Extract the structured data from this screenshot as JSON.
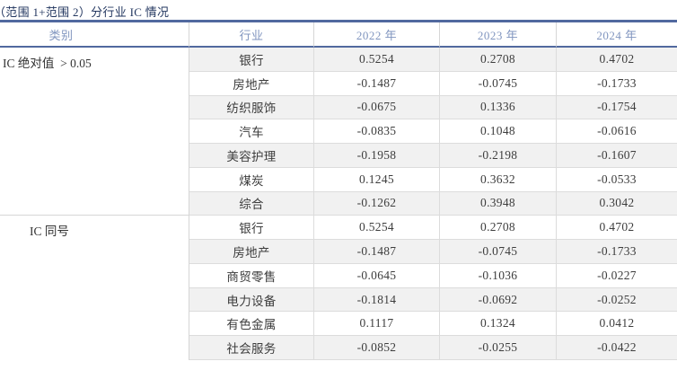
{
  "title": "（范围 1+范围 2）分行业 IC 情况",
  "table": {
    "headers": [
      "类别",
      "行业",
      "2022 年",
      "2023 年",
      "2024 年"
    ],
    "sections": [
      {
        "category": "IC 绝对值  > 0.05",
        "rows": [
          [
            "银行",
            "0.5254",
            "0.2708",
            "0.4702"
          ],
          [
            "房地产",
            "-0.1487",
            "-0.0745",
            "-0.1733"
          ],
          [
            "纺织服饰",
            "-0.0675",
            "0.1336",
            "-0.1754"
          ],
          [
            "汽车",
            "-0.0835",
            "0.1048",
            "-0.0616"
          ],
          [
            "美容护理",
            "-0.1958",
            "-0.2198",
            "-0.1607"
          ],
          [
            "煤炭",
            "0.1245",
            "0.3632",
            "-0.0533"
          ],
          [
            "综合",
            "-0.1262",
            "0.3948",
            "0.3042"
          ]
        ]
      },
      {
        "category": "IC 同号",
        "rows": [
          [
            "银行",
            "0.5254",
            "0.2708",
            "0.4702"
          ],
          [
            "房地产",
            "-0.1487",
            "-0.0745",
            "-0.1733"
          ],
          [
            "商贸零售",
            "-0.0645",
            "-0.1036",
            "-0.0227"
          ],
          [
            "电力设备",
            "-0.1814",
            "-0.0692",
            "-0.0252"
          ],
          [
            "有色金属",
            "0.1117",
            "0.1324",
            "0.0412"
          ],
          [
            "社会服务",
            "-0.0852",
            "-0.0255",
            "-0.0422"
          ]
        ]
      }
    ]
  },
  "chart_data": {
    "type": "table",
    "title": "（范围 1+范围 2）分行业 IC 情况",
    "columns": [
      "类别",
      "行业",
      "2022 年",
      "2023 年",
      "2024 年"
    ],
    "rows": [
      [
        "IC 绝对值 > 0.05",
        "银行",
        0.5254,
        0.2708,
        0.4702
      ],
      [
        "IC 绝对值 > 0.05",
        "房地产",
        -0.1487,
        -0.0745,
        -0.1733
      ],
      [
        "IC 绝对值 > 0.05",
        "纺织服饰",
        -0.0675,
        0.1336,
        -0.1754
      ],
      [
        "IC 绝对值 > 0.05",
        "汽车",
        -0.0835,
        0.1048,
        -0.0616
      ],
      [
        "IC 绝对值 > 0.05",
        "美容护理",
        -0.1958,
        -0.2198,
        -0.1607
      ],
      [
        "IC 绝对值 > 0.05",
        "煤炭",
        0.1245,
        0.3632,
        -0.0533
      ],
      [
        "IC 绝对值 > 0.05",
        "综合",
        -0.1262,
        0.3948,
        0.3042
      ],
      [
        "IC 同号",
        "银行",
        0.5254,
        0.2708,
        0.4702
      ],
      [
        "IC 同号",
        "房地产",
        -0.1487,
        -0.0745,
        -0.1733
      ],
      [
        "IC 同号",
        "商贸零售",
        -0.0645,
        -0.1036,
        -0.0227
      ],
      [
        "IC 同号",
        "电力设备",
        -0.1814,
        -0.0692,
        -0.0252
      ],
      [
        "IC 同号",
        "有色金属",
        0.1117,
        0.1324,
        0.0412
      ],
      [
        "IC 同号",
        "社会服务",
        -0.0852,
        -0.0255,
        -0.0422
      ]
    ]
  },
  "colors": {
    "accent_blue": "#51699f",
    "title_text": "#22365f",
    "header_text": "#8095bf",
    "body_text": "#3d3d3d",
    "category_text": "#333333",
    "stripe": "#f1f1f1",
    "row_border": "#dcdcdc",
    "column1_border": "#d6d6d6",
    "background": "#ffffff"
  }
}
